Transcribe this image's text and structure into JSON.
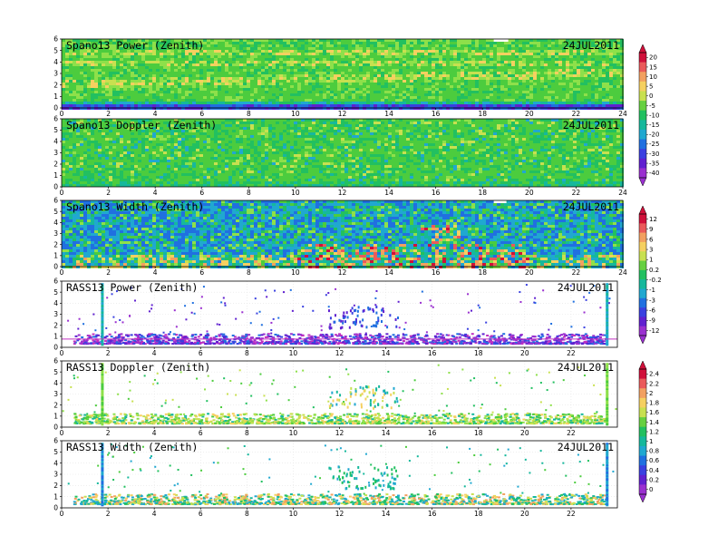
{
  "chart_data": [
    {
      "type": "heatmap",
      "title": "Spano13 Power (Zenith)",
      "date": "24JUL2011",
      "xlim": [
        0,
        24
      ],
      "ylim": [
        0,
        6
      ],
      "x_ticks": [
        "0",
        "2",
        "4",
        "6",
        "8",
        "10",
        "12",
        "14",
        "16",
        "18",
        "20",
        "22",
        "24"
      ],
      "y_ticks": [
        "0",
        "1",
        "2",
        "3",
        "4",
        "5",
        "6"
      ],
      "colorbar": 0,
      "pattern": "dense-bands"
    },
    {
      "type": "heatmap",
      "title": "Spano13 Doppler (Zenith)",
      "date": "24JUL2011",
      "xlim": [
        0,
        24
      ],
      "ylim": [
        0,
        6
      ],
      "x_ticks": [
        "0",
        "2",
        "4",
        "6",
        "8",
        "10",
        "12",
        "14",
        "16",
        "18",
        "20",
        "22",
        "24"
      ],
      "y_ticks": [
        "0",
        "1",
        "2",
        "3",
        "4",
        "5",
        "6"
      ],
      "colorbar": 0,
      "pattern": "dense-doppler"
    },
    {
      "type": "heatmap",
      "title": "Spano13 Width (Zenith)",
      "date": "24JUL2011",
      "xlim": [
        0,
        24
      ],
      "ylim": [
        0,
        6
      ],
      "x_ticks": [
        "0",
        "2",
        "4",
        "6",
        "8",
        "10",
        "12",
        "14",
        "16",
        "18",
        "20",
        "22",
        "24"
      ],
      "y_ticks": [
        "0",
        "1",
        "2",
        "3",
        "4",
        "5",
        "6"
      ],
      "colorbar": 1,
      "pattern": "dense-width"
    },
    {
      "type": "heatmap",
      "title": "RASS13 Power (Zenith)",
      "date": "24JUL2011",
      "xlim": [
        0,
        24
      ],
      "ylim": [
        0,
        6
      ],
      "x_ticks": [
        "0",
        "2",
        "4",
        "6",
        "8",
        "10",
        "12",
        "14",
        "16",
        "18",
        "20",
        "22"
      ],
      "y_ticks": [
        "0",
        "1",
        "2",
        "3",
        "4",
        "5",
        "6"
      ],
      "colorbar": 1,
      "pattern": "sparse-power"
    },
    {
      "type": "heatmap",
      "title": "RASS13 Doppler (Zenith)",
      "date": "24JUL2011",
      "xlim": [
        0,
        24
      ],
      "ylim": [
        0,
        6
      ],
      "x_ticks": [
        "0",
        "2",
        "4",
        "6",
        "8",
        "10",
        "12",
        "14",
        "16",
        "18",
        "20",
        "22"
      ],
      "y_ticks": [
        "0",
        "1",
        "2",
        "3",
        "4",
        "5",
        "6"
      ],
      "colorbar": 2,
      "pattern": "sparse-doppler"
    },
    {
      "type": "heatmap",
      "title": "RASS13 Width (Zenith)",
      "date": "24JUL2011",
      "xlim": [
        0,
        24
      ],
      "ylim": [
        0,
        6
      ],
      "x_ticks": [
        "0",
        "2",
        "4",
        "6",
        "8",
        "10",
        "12",
        "14",
        "16",
        "18",
        "20",
        "22"
      ],
      "y_ticks": [
        "0",
        "1",
        "2",
        "3",
        "4",
        "5",
        "6"
      ],
      "colorbar": 2,
      "pattern": "sparse-width"
    }
  ],
  "colorbars": [
    {
      "labels": [
        "20",
        "15",
        "10",
        "5",
        "0",
        "-5",
        "-10",
        "-15",
        "-20",
        "-25",
        "-30",
        "-35",
        "-40"
      ],
      "colors": [
        "#d0103a",
        "#ea5a5a",
        "#f2a060",
        "#f5d060",
        "#c8e050",
        "#66d040",
        "#22c060",
        "#16b89c",
        "#20a8d0",
        "#2070e0",
        "#3a40e0",
        "#6020d0",
        "#9a30d0"
      ]
    },
    {
      "labels": [
        "12",
        "9",
        "6",
        "3",
        "1",
        "0.2",
        "-0.2",
        "-1",
        "-3",
        "-6",
        "-9",
        "-12"
      ],
      "colors": [
        "#d0103a",
        "#ea5a5a",
        "#f2a060",
        "#f5d060",
        "#c8e050",
        "#66d040",
        "#22c060",
        "#16b89c",
        "#20a8d0",
        "#2070e0",
        "#3a40e0",
        "#6020d0",
        "#9a30d0"
      ]
    },
    {
      "labels": [
        "2.4",
        "2.2",
        "2",
        "1.8",
        "1.6",
        "1.4",
        "1.2",
        "1",
        "0.8",
        "0.6",
        "0.4",
        "0.2",
        "0"
      ],
      "colors": [
        "#d0103a",
        "#ea5a5a",
        "#f2a060",
        "#f5d060",
        "#c8e050",
        "#66d040",
        "#22c060",
        "#16b89c",
        "#20a8d0",
        "#2070e0",
        "#3a40e0",
        "#6020d0",
        "#9a30d0"
      ]
    }
  ]
}
